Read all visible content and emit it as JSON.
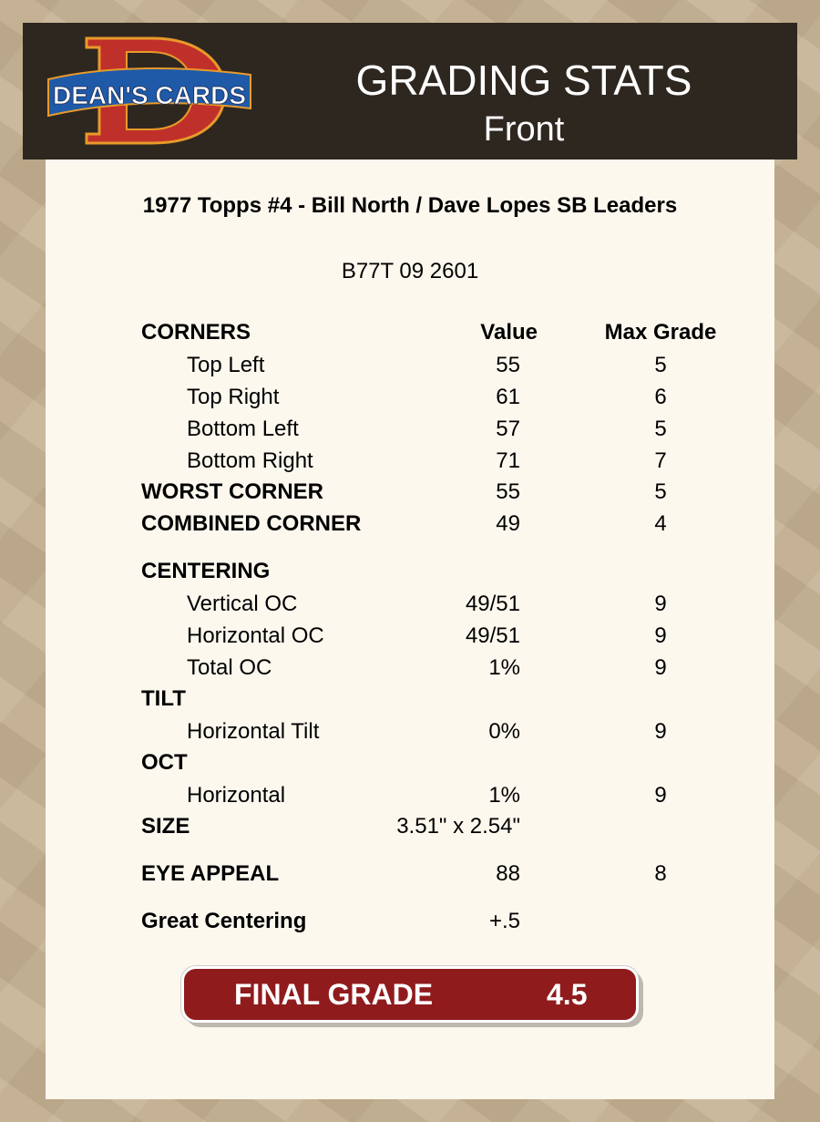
{
  "header": {
    "logo_text": "DEAN'S CARDS",
    "title": "GRADING STATS",
    "subtitle": "Front"
  },
  "card": {
    "name": "1977 Topps #4  -  Bill North / Dave Lopes SB Leaders",
    "cert": "B77T 09 2601"
  },
  "columns": {
    "value": "Value",
    "max": "Max Grade"
  },
  "rows": [
    {
      "label": "CORNERS",
      "bold": true
    },
    {
      "label": "Top Left",
      "value": "55",
      "max": "5"
    },
    {
      "label": "Top Right",
      "value": "61",
      "max": "6"
    },
    {
      "label": "Bottom Left",
      "value": "57",
      "max": "5"
    },
    {
      "label": "Bottom Right",
      "value": "71",
      "max": "7"
    },
    {
      "label": "WORST CORNER",
      "value": "55",
      "max": "5",
      "bold": true
    },
    {
      "label": "COMBINED CORNER",
      "value": "49",
      "max": "4",
      "bold": true
    },
    {
      "label": "CENTERING",
      "bold": true
    },
    {
      "label": "Vertical OC",
      "value": "49/51",
      "max": "9"
    },
    {
      "label": "Horizontal OC",
      "value": "49/51",
      "max": "9"
    },
    {
      "label": "Total OC",
      "value": "1%",
      "max": "9"
    },
    {
      "label": "TILT",
      "bold": true
    },
    {
      "label": "Horizontal Tilt",
      "value": "0%",
      "max": "9"
    },
    {
      "label": "OCT",
      "bold": true
    },
    {
      "label": "Horizontal",
      "value": "1%",
      "max": "9"
    },
    {
      "label": "SIZE",
      "value": "3.51\" x 2.54\"",
      "bold": true
    },
    {
      "label": "EYE APPEAL",
      "value": "88",
      "max": "8",
      "bold": true
    },
    {
      "label": "Great Centering",
      "value": "+.5",
      "bold": true
    }
  ],
  "final": {
    "label": "FINAL GRADE",
    "value": "4.5"
  },
  "colors": {
    "header_bg": "#2e2720",
    "panel_bg": "#fcf8ee",
    "final_bg": "#8f1b1d"
  }
}
